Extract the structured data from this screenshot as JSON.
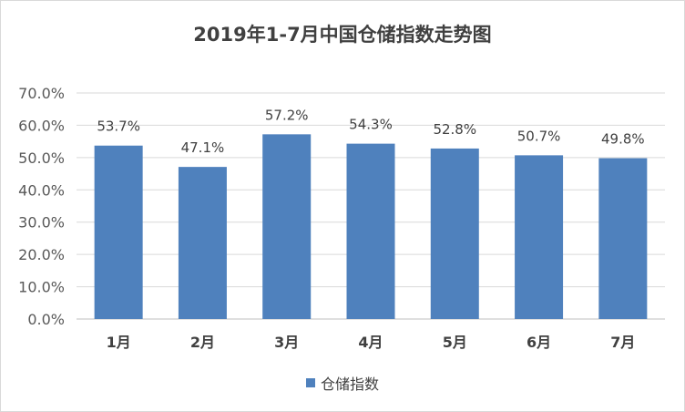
{
  "chart_data": {
    "type": "bar",
    "title": "2019年1-7月中国仓储指数走势图",
    "categories": [
      "1月",
      "2月",
      "3月",
      "4月",
      "5月",
      "6月",
      "7月"
    ],
    "series": [
      {
        "name": "仓储指数",
        "values": [
          53.7,
          47.1,
          57.2,
          54.3,
          52.8,
          50.7,
          49.8
        ],
        "labels": [
          "53.7%",
          "47.1%",
          "57.2%",
          "54.3%",
          "52.8%",
          "50.7%",
          "49.8%"
        ],
        "color": "#4f81bd"
      }
    ],
    "ylim": [
      0,
      70
    ],
    "yticks": [
      "0.0%",
      "10.0%",
      "20.0%",
      "30.0%",
      "40.0%",
      "50.0%",
      "60.0%",
      "70.0%"
    ],
    "grid": true,
    "legend_position": "bottom"
  }
}
